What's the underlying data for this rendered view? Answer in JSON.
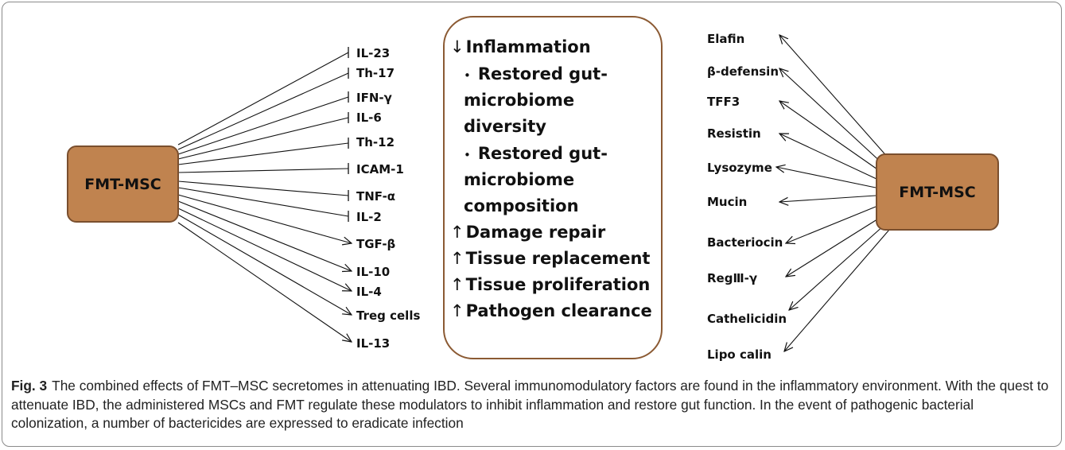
{
  "left_box": {
    "label": "FMT-MSC"
  },
  "right_box": {
    "label": "FMT-MSC"
  },
  "inhibited_factors": [
    "IL-23",
    "Th-17",
    "IFN-γ",
    "IL-6",
    "Th-12",
    "ICAM-1",
    "TNF-α",
    "IL-2"
  ],
  "promoted_factors": [
    "TGF-β",
    "IL-10",
    "IL-4",
    "Treg cells",
    "IL-13"
  ],
  "center_effects": [
    {
      "arrow": "↓",
      "text": "Inflammation"
    },
    {
      "arrow": "•",
      "text": "Restored gut-"
    },
    {
      "arrow": "",
      "text": "microbiome"
    },
    {
      "arrow": "",
      "text": "diversity"
    },
    {
      "arrow": "•",
      "text": "Restored gut-"
    },
    {
      "arrow": "",
      "text": "microbiome"
    },
    {
      "arrow": "",
      "text": "composition"
    },
    {
      "arrow": "↑",
      "text": "Damage repair"
    },
    {
      "arrow": "↑",
      "text": "Tissue replacement"
    },
    {
      "arrow": "↑",
      "text": "Tissue proliferation"
    },
    {
      "arrow": "↑",
      "text": "Pathogen clearance"
    }
  ],
  "bactericides": [
    "Elafin",
    "β-defensin",
    "TFF3",
    "Resistin",
    "Lysozyme",
    "Mucin",
    "Bacteriocin",
    "RegⅢ-γ",
    "Cathelicidin",
    "Lipo calin"
  ],
  "caption": {
    "label": "Fig. 3",
    "text": "The combined effects of FMT–MSC secretomes in attenuating IBD. Several immunomodulatory factors are found in the inflammatory environment. With the quest to attenuate IBD, the administered MSCs and FMT regulate these modulators to inhibit inflammation and restore gut function. In the event of pathogenic bacterial colonization, a number of bactericides are expressed to eradicate infection"
  },
  "colors": {
    "box_fill": "#c0834f",
    "box_border": "#7a4f2e",
    "center_border": "#8b5a33",
    "line": "#111111"
  }
}
